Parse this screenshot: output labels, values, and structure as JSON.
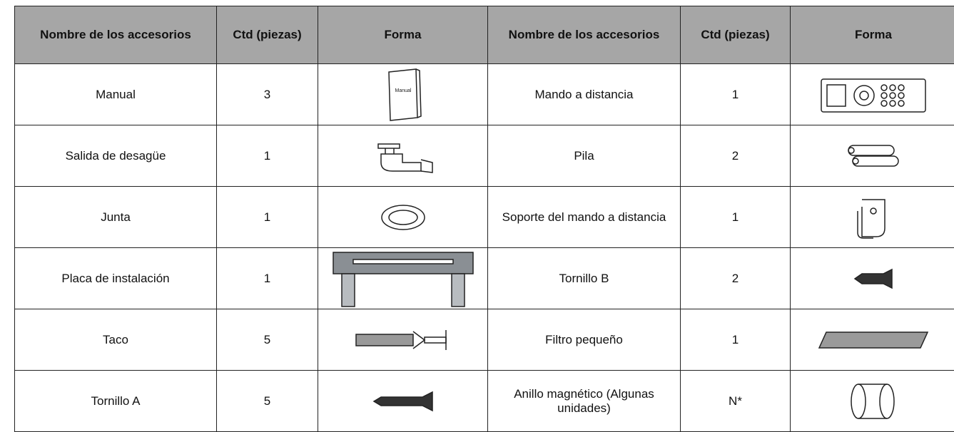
{
  "table": {
    "header": [
      "Nombre de los accesorios",
      "Ctd (piezas)",
      "Forma",
      "Nombre de los accesorios",
      "Ctd (piezas)",
      "Forma"
    ],
    "rows": [
      [
        "Manual",
        3,
        "Mando a distancia",
        1
      ],
      [
        "Salida de desagüe",
        1,
        "Pila",
        2
      ],
      [
        "Junta",
        1,
        "Soporte del mando a distancia",
        1
      ],
      [
        "Placa de instalación",
        1,
        "Tornillo B",
        2
      ],
      [
        "Taco",
        5,
        "Filtro pequeño",
        1
      ],
      [
        "Tornillo A",
        5,
        "Anillo magnético (Algunas unidades)",
        "N*"
      ]
    ],
    "manual_icon_label": "Manual"
  }
}
